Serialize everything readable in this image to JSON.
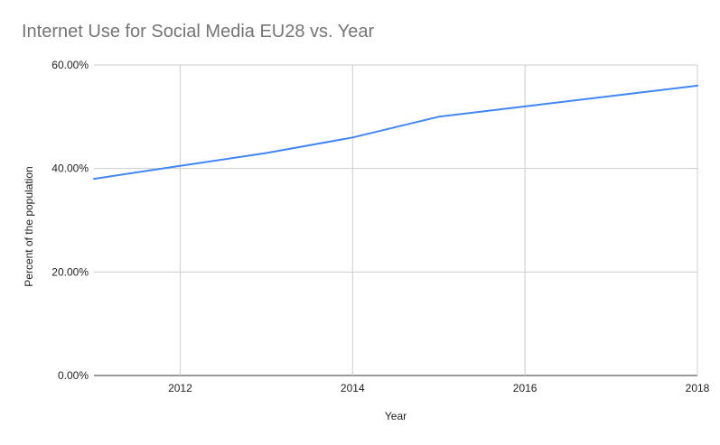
{
  "chart_data": {
    "type": "line",
    "title": "Internet Use for Social Media EU28 vs. Year",
    "xlabel": "Year",
    "ylabel": "Percent of the population",
    "xlim": [
      2011,
      2018
    ],
    "ylim": [
      0,
      60
    ],
    "x_ticks": [
      2012,
      2014,
      2016,
      2018
    ],
    "x_tick_labels": [
      "2012",
      "2014",
      "2016",
      "2018"
    ],
    "y_ticks": [
      0,
      20,
      40,
      60
    ],
    "y_tick_labels": [
      "0.00%",
      "20.00%",
      "40.00%",
      "60.00%"
    ],
    "grid": true,
    "legend": "none",
    "line_color": "#4285f4",
    "series": [
      {
        "x": [
          2011,
          2012,
          2013,
          2014,
          2015,
          2016,
          2017,
          2018
        ],
        "values": [
          38,
          40.5,
          43,
          46,
          50,
          52,
          54,
          56
        ]
      }
    ]
  }
}
